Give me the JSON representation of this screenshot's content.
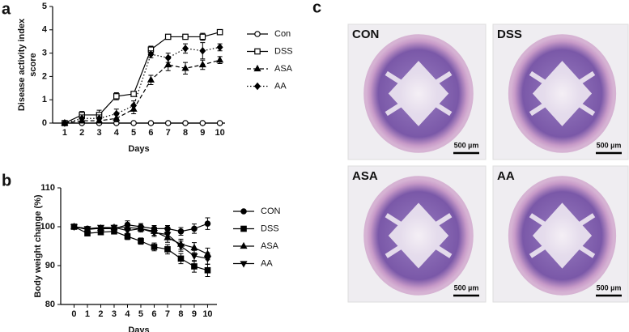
{
  "panels": [
    "a",
    "b",
    "c"
  ],
  "chart_data": [
    {
      "type": "line",
      "ylabel": [
        "Disease activity index",
        "score"
      ],
      "xlabel": "Days",
      "x": [
        1,
        2,
        3,
        4,
        5,
        6,
        7,
        8,
        9,
        10
      ],
      "xlim": [
        0.3,
        10.3
      ],
      "xticks": [
        1,
        2,
        3,
        4,
        5,
        6,
        7,
        8,
        9,
        10
      ],
      "ylim": [
        0,
        5
      ],
      "yticks": [
        0,
        1,
        2,
        3,
        4,
        5
      ],
      "legend": "right",
      "series": [
        {
          "name": "Con",
          "color": "#000000",
          "marker": "circle-open",
          "dash": "solid",
          "values": [
            0,
            0,
            0,
            0,
            0,
            0,
            0,
            0,
            0,
            0
          ]
        },
        {
          "name": "DSS",
          "color": "#000000",
          "marker": "square-open",
          "dash": "solid",
          "values": [
            0,
            0.35,
            0.35,
            1.15,
            1.25,
            3.15,
            3.7,
            3.7,
            3.7,
            3.9
          ],
          "errors": [
            0,
            0.15,
            0.2,
            0.15,
            0.1,
            0.15,
            0.1,
            0.1,
            0.15,
            0.1
          ]
        },
        {
          "name": "ASA",
          "color": "#000000",
          "marker": "triangle-up",
          "dash": "dashed",
          "values": [
            0,
            0.1,
            0.1,
            0.2,
            0.6,
            1.85,
            2.5,
            2.35,
            2.5,
            2.7
          ],
          "errors": [
            0,
            0.1,
            0.1,
            0.15,
            0.2,
            0.2,
            0.25,
            0.25,
            0.2,
            0.15
          ]
        },
        {
          "name": "AA",
          "color": "#000000",
          "marker": "diamond",
          "dash": "dotted",
          "values": [
            0,
            0.2,
            0.2,
            0.4,
            0.75,
            2.95,
            2.8,
            3.2,
            3.1,
            3.25
          ],
          "errors": [
            0,
            0.15,
            0.15,
            0.2,
            0.2,
            0.15,
            0.2,
            0.2,
            0.35,
            0.15
          ]
        }
      ]
    },
    {
      "type": "line",
      "ylabel": [
        "Body weight change  (%)"
      ],
      "xlabel": "Days",
      "x": [
        0,
        1,
        2,
        3,
        4,
        5,
        6,
        7,
        8,
        9,
        10
      ],
      "xlim": [
        -1,
        10.7
      ],
      "xticks": [
        0,
        1,
        2,
        3,
        4,
        5,
        6,
        7,
        8,
        9,
        10
      ],
      "ylim": [
        80,
        110
      ],
      "yticks": [
        80,
        90,
        100,
        110
      ],
      "legend": "right",
      "series": [
        {
          "name": "CON",
          "color": "#000000",
          "marker": "circle",
          "dash": "solid",
          "values": [
            100,
            99.5,
            99.5,
            99.5,
            100.5,
            100,
            99.5,
            99.5,
            98.8,
            99.5,
            100.8
          ],
          "errors": [
            0,
            0.5,
            0.6,
            0.6,
            1,
            0.8,
            0.8,
            0.8,
            1,
            1.2,
            1.5
          ]
        },
        {
          "name": "DSS",
          "color": "#000000",
          "marker": "square",
          "dash": "solid",
          "values": [
            100,
            98.3,
            98.6,
            98.8,
            97.5,
            96.3,
            94.8,
            94.2,
            91.8,
            89.8,
            88.8
          ],
          "errors": [
            0,
            0.5,
            0.6,
            0.6,
            0.8,
            0.8,
            1,
            1.2,
            1.3,
            1.5,
            1.6
          ]
        },
        {
          "name": "ASA",
          "color": "#000000",
          "marker": "triangle-up",
          "dash": "solid",
          "values": [
            100,
            99.3,
            99.6,
            99.8,
            99.8,
            99.5,
            98.8,
            97.2,
            95.5,
            94.6,
            93
          ],
          "errors": [
            0,
            0.5,
            0.5,
            0.6,
            0.8,
            0.8,
            1,
            1.2,
            1.3,
            1.3,
            1.5
          ]
        },
        {
          "name": "AA",
          "color": "#000000",
          "marker": "triangle-down",
          "dash": "solid",
          "values": [
            100,
            99.5,
            99.8,
            99.8,
            99,
            99.5,
            98.5,
            98,
            95,
            92.5,
            91.8
          ],
          "errors": [
            0,
            0.5,
            0.5,
            0.6,
            0.8,
            0.8,
            1,
            1.1,
            1.3,
            1.4,
            1.5
          ]
        }
      ]
    }
  ],
  "images": [
    {
      "label": "CON",
      "scale_bar": "500 µm"
    },
    {
      "label": "DSS",
      "scale_bar": "500 µm"
    },
    {
      "label": "ASA",
      "scale_bar": "500 µm"
    },
    {
      "label": "AA",
      "scale_bar": "500 µm"
    }
  ]
}
